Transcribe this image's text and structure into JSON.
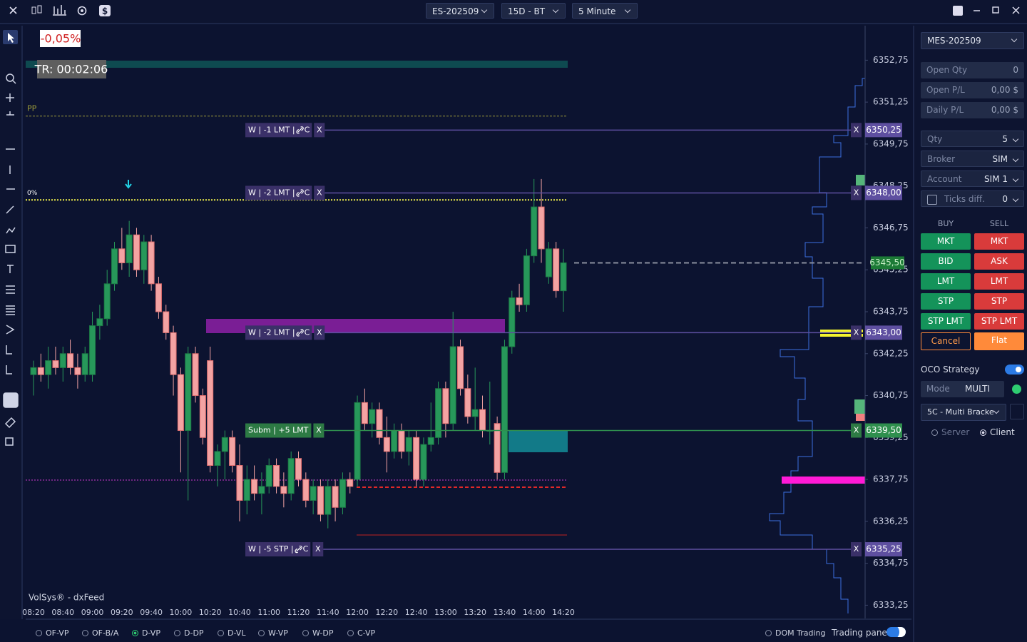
{
  "top_bar": {
    "symbol": "ES-202509",
    "range": "15D - BT",
    "interval": "5 Minute"
  },
  "chart_data": {
    "type": "candlestick",
    "change_label": "-0,05%",
    "timer_label": "TR: 00:02:06",
    "source_label": "VolSys® - dxFeed",
    "close_symbol": "X",
    "up_color": "#27985a",
    "down_color": "#f3a3a3",
    "ylim": [
      6332.75,
      6354.0
    ],
    "yticks": [
      {
        "value": 6352.75,
        "label": "6352,75"
      },
      {
        "value": 6351.25,
        "label": "6351,25"
      },
      {
        "value": 6349.75,
        "label": "6349,75"
      },
      {
        "value": 6348.25,
        "label": "6348,25"
      },
      {
        "value": 6346.75,
        "label": "6346,75"
      },
      {
        "value": 6345.25,
        "label": "6345,25"
      },
      {
        "value": 6343.75,
        "label": "6343,75"
      },
      {
        "value": 6342.25,
        "label": "6342,25"
      },
      {
        "value": 6340.75,
        "label": "6340,75"
      },
      {
        "value": 6339.25,
        "label": "6339,25"
      },
      {
        "value": 6337.75,
        "label": "6337,75"
      },
      {
        "value": 6336.25,
        "label": "6336,25"
      },
      {
        "value": 6334.75,
        "label": "6334,75"
      },
      {
        "value": 6333.25,
        "label": "6333,25"
      }
    ],
    "levels": [
      {
        "name": "PP",
        "price": 6350.75,
        "color": "#9a9a3a"
      },
      {
        "name": "0%",
        "price": 6347.75,
        "color": "#f2f24a"
      }
    ],
    "last_price": {
      "value": 6345.5,
      "label": "6345,50"
    },
    "orders": [
      {
        "text": "W | -1 LMT |",
        "tag": "C",
        "price": {
          "value": 6350.25,
          "label": "6350,25"
        },
        "color": "#5e4fa0"
      },
      {
        "text": "W | -2 LMT |",
        "tag": "C",
        "price": {
          "value": 6348.0,
          "label": "6348,00"
        },
        "color": "#5e4fa0"
      },
      {
        "text": "W | -2 LMT |",
        "tag": "C",
        "price": {
          "value": 6343.0,
          "label": "6343,00"
        },
        "color": "#5e4fa0"
      },
      {
        "text": "Subm | +5 LMT",
        "price": {
          "value": 6339.5,
          "label": "6339,50"
        },
        "color": "#2f8f4e"
      },
      {
        "text": "W | -5 STP |",
        "tag": "C",
        "price": {
          "value": 6335.25,
          "label": "6335,25"
        },
        "color": "#5e4fa0"
      }
    ],
    "categories": [
      "08:20",
      null,
      null,
      null,
      "08:40",
      null,
      null,
      null,
      "09:00",
      null,
      null,
      null,
      "09:20",
      null,
      null,
      null,
      "09:40",
      null,
      null,
      null,
      "10:00",
      null,
      null,
      null,
      "10:20",
      null,
      null,
      null,
      "10:40",
      null,
      null,
      null,
      "11:00",
      null,
      null,
      null,
      "11:20",
      null,
      null,
      null,
      "11:40",
      null,
      null,
      null,
      "12:00",
      null,
      null,
      null,
      "12:20",
      null,
      null,
      null,
      "12:40",
      null,
      null,
      null,
      "13:00",
      null,
      null,
      null,
      "13:20",
      null,
      null,
      null,
      "13:40",
      null,
      null,
      null,
      "14:00",
      null,
      null,
      null,
      "14:20"
    ],
    "candles": [
      [
        6341.5,
        6342.0,
        6340.75,
        6341.75
      ],
      [
        6341.75,
        6342.25,
        6341.25,
        6341.5
      ],
      [
        6341.5,
        6342.5,
        6341.0,
        6342.0
      ],
      [
        6342.0,
        6342.5,
        6341.5,
        6341.75
      ],
      [
        6341.75,
        6342.5,
        6341.25,
        6342.25
      ],
      [
        6342.25,
        6342.75,
        6341.5,
        6341.75
      ],
      [
        6341.75,
        6342.25,
        6341.0,
        6341.5
      ],
      [
        6341.5,
        6342.5,
        6341.25,
        6342.25
      ],
      [
        6341.5,
        6343.75,
        6341.25,
        6343.25
      ],
      [
        6343.25,
        6344.0,
        6342.75,
        6343.5
      ],
      [
        6343.5,
        6345.25,
        6343.25,
        6344.75
      ],
      [
        6344.75,
        6346.25,
        6344.5,
        6346.0
      ],
      [
        6346.0,
        6346.75,
        6345.25,
        6345.5
      ],
      [
        6345.5,
        6347.0,
        6345.0,
        6346.5
      ],
      [
        6346.5,
        6346.75,
        6345.0,
        6345.25
      ],
      [
        6345.25,
        6346.5,
        6344.75,
        6346.25
      ],
      [
        6346.25,
        6346.5,
        6344.5,
        6344.75
      ],
      [
        6344.75,
        6345.0,
        6343.5,
        6343.75
      ],
      [
        6343.75,
        6344.0,
        6342.75,
        6343.0
      ],
      [
        6343.0,
        6343.25,
        6340.75,
        6341.5
      ],
      [
        6341.5,
        6341.75,
        6338.0,
        6339.5
      ],
      [
        6339.5,
        6342.5,
        6337.0,
        6342.25
      ],
      [
        6342.25,
        6342.5,
        6340.5,
        6340.75
      ],
      [
        6340.75,
        6341.0,
        6339.0,
        6339.25
      ],
      [
        6342.0,
        6342.5,
        6338.0,
        6338.25
      ],
      [
        6338.25,
        6339.0,
        6337.5,
        6338.75
      ],
      [
        6338.75,
        6339.5,
        6337.75,
        6339.25
      ],
      [
        6339.25,
        6339.5,
        6338.0,
        6338.25
      ],
      [
        6338.25,
        6339.0,
        6336.25,
        6337.0
      ],
      [
        6337.0,
        6338.25,
        6336.5,
        6337.75
      ],
      [
        6337.75,
        6338.25,
        6337.0,
        6337.25
      ],
      [
        6337.25,
        6338.0,
        6336.5,
        6337.5
      ],
      [
        6337.5,
        6338.5,
        6337.25,
        6338.25
      ],
      [
        6338.25,
        6338.5,
        6337.25,
        6337.5
      ],
      [
        6337.5,
        6338.0,
        6336.75,
        6337.25
      ],
      [
        6337.25,
        6338.75,
        6337.0,
        6338.5
      ],
      [
        6338.5,
        6338.75,
        6337.5,
        6337.75
      ],
      [
        6337.75,
        6338.0,
        6336.75,
        6337.0
      ],
      [
        6337.0,
        6337.75,
        6336.5,
        6337.5
      ],
      [
        6337.5,
        6337.75,
        6336.25,
        6336.5
      ],
      [
        6336.5,
        6337.75,
        6336.0,
        6337.5
      ],
      [
        6337.5,
        6337.75,
        6336.25,
        6336.75
      ],
      [
        6336.75,
        6338.0,
        6336.5,
        6337.75
      ],
      [
        6337.75,
        6338.0,
        6337.25,
        6337.5
      ],
      [
        6337.75,
        6340.75,
        6337.5,
        6340.5
      ],
      [
        6340.5,
        6341.0,
        6339.5,
        6339.75
      ],
      [
        6339.75,
        6340.5,
        6339.25,
        6340.25
      ],
      [
        6340.25,
        6340.5,
        6339.0,
        6339.25
      ],
      [
        6339.25,
        6340.0,
        6338.0,
        6338.75
      ],
      [
        6338.75,
        6339.75,
        6338.5,
        6339.5
      ],
      [
        6339.5,
        6339.75,
        6338.5,
        6338.75
      ],
      [
        6338.75,
        6339.5,
        6338.25,
        6339.25
      ],
      [
        6339.25,
        6339.5,
        6337.5,
        6337.75
      ],
      [
        6337.75,
        6339.25,
        6337.5,
        6339.0
      ],
      [
        6339.0,
        6340.5,
        6338.75,
        6339.25
      ],
      [
        6339.25,
        6341.25,
        6339.0,
        6341.0
      ],
      [
        6341.0,
        6341.25,
        6339.25,
        6339.75
      ],
      [
        6339.75,
        6343.75,
        6339.5,
        6342.5
      ],
      [
        6342.5,
        6342.75,
        6340.75,
        6341.0
      ],
      [
        6341.0,
        6341.5,
        6339.75,
        6340.0
      ],
      [
        6340.0,
        6341.75,
        6339.5,
        6340.25
      ],
      [
        6340.25,
        6340.75,
        6339.25,
        6339.5
      ],
      [
        6339.5,
        6341.25,
        6339.0,
        6339.5
      ],
      [
        6339.75,
        6340.0,
        6337.75,
        6338.0
      ],
      [
        6338.0,
        6342.75,
        6337.75,
        6342.5
      ],
      [
        6342.5,
        6344.5,
        6342.25,
        6344.25
      ],
      [
        6344.25,
        6344.75,
        6343.75,
        6344.0
      ],
      [
        6344.0,
        6346.0,
        6343.75,
        6345.75
      ],
      [
        6345.75,
        6348.5,
        6345.5,
        6347.5
      ],
      [
        6347.5,
        6348.5,
        6345.5,
        6346.0
      ],
      [
        6345.0,
        6346.25,
        6344.75,
        6346.0
      ],
      [
        6346.0,
        6346.25,
        6344.25,
        6344.5
      ],
      [
        6344.5,
        6346.0,
        6343.75,
        6345.5
      ]
    ]
  },
  "panel": {
    "symbol": "MES-202509",
    "stats": [
      {
        "label": "Open Qty",
        "value": "0"
      },
      {
        "label": "Open P/L",
        "value": "0,00 $"
      },
      {
        "label": "Daily P/L",
        "value": "0,00 $"
      }
    ],
    "settings": [
      {
        "label": "Qty",
        "value": "5"
      },
      {
        "label": "Broker",
        "value": "SIM"
      },
      {
        "label": "Account",
        "value": "SIM 1"
      },
      {
        "label": "Ticks diff.",
        "value": "0"
      }
    ],
    "buy_label": "BUY",
    "sell_label": "SELL",
    "buy_buttons": [
      "MKT",
      "BID",
      "LMT",
      "STP",
      "STP LMT"
    ],
    "sell_buttons": [
      "MKT",
      "ASK",
      "LMT",
      "STP",
      "STP LMT"
    ],
    "cancel": "Cancel",
    "flat": "Flat",
    "oco_label": "OCO Strategy",
    "mode_label": "Mode",
    "mode_value": "MULTI",
    "strategy": "5C - Multi Bracke",
    "server": "Server",
    "client": "Client"
  },
  "bottom_bar": {
    "tabs": [
      "OF-VP",
      "OF-B/A",
      "D-VP",
      "D-DP",
      "D-VL",
      "W-VP",
      "W-DP",
      "C-VP"
    ],
    "selected": 2,
    "dom": "DOM Trading",
    "trading_panel": "Trading panel"
  }
}
